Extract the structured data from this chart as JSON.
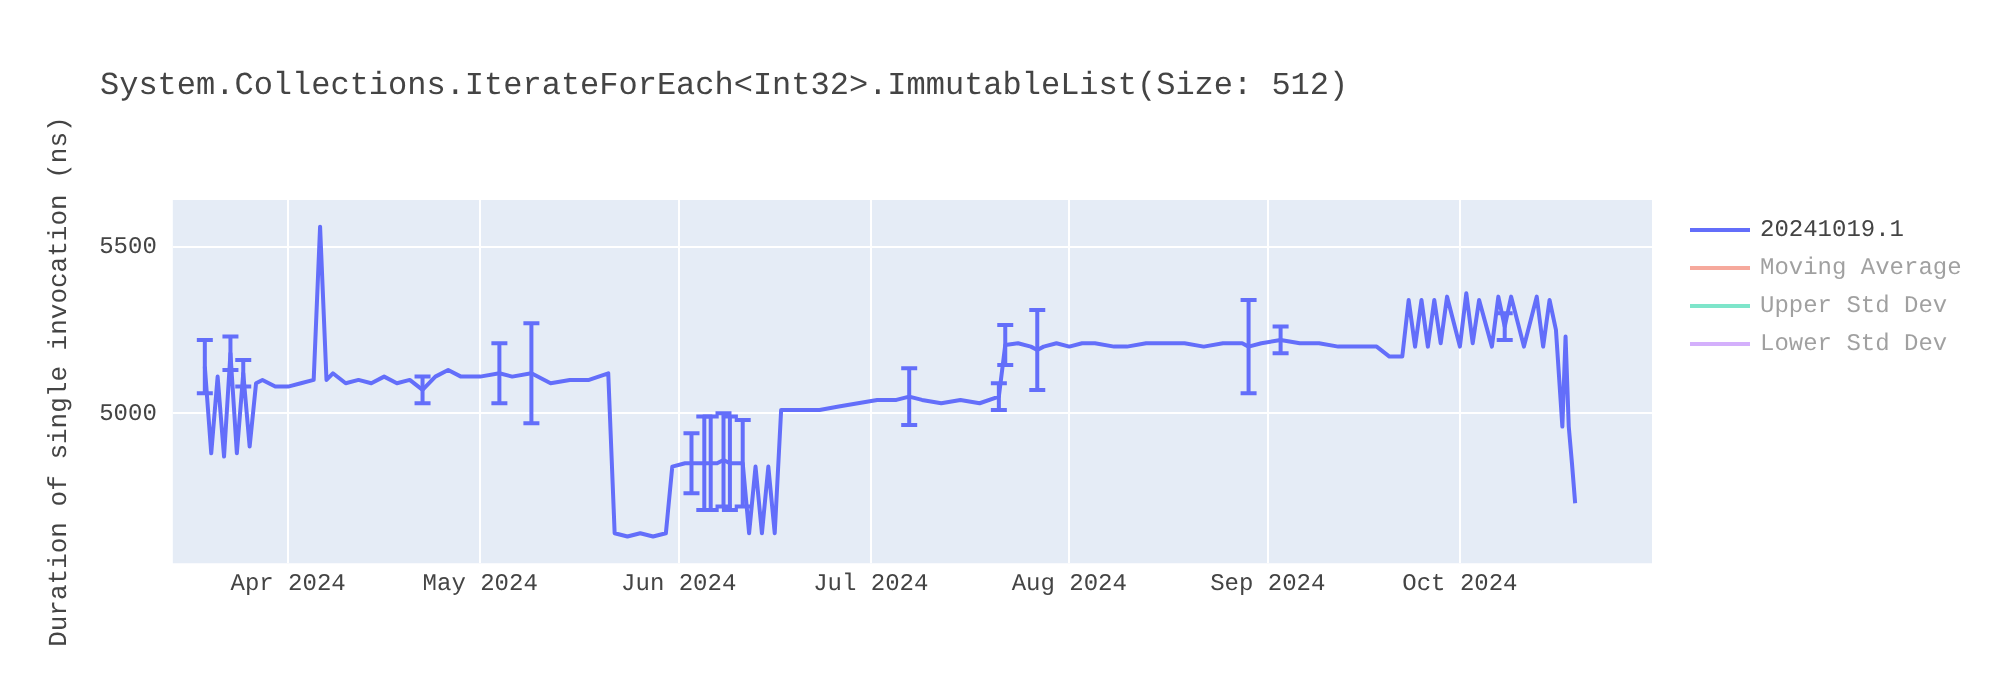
{
  "chart_data": {
    "type": "line",
    "title": "System.Collections.IterateForEach<Int32>.ImmutableList(Size: 512)",
    "ylabel": "Duration of single invocation (ns)",
    "x": [
      "2024-03-19",
      "2024-03-20",
      "2024-03-21",
      "2024-03-22",
      "2024-03-23",
      "2024-03-24",
      "2024-03-25",
      "2024-03-26",
      "2024-03-27",
      "2024-03-28",
      "2024-03-30",
      "2024-04-01",
      "2024-04-03",
      "2024-04-05",
      "2024-04-06",
      "2024-04-07",
      "2024-04-08",
      "2024-04-10",
      "2024-04-12",
      "2024-04-14",
      "2024-04-16",
      "2024-04-18",
      "2024-04-20",
      "2024-04-22",
      "2024-04-24",
      "2024-04-26",
      "2024-04-28",
      "2024-05-01",
      "2024-05-04",
      "2024-05-06",
      "2024-05-09",
      "2024-05-12",
      "2024-05-15",
      "2024-05-18",
      "2024-05-21",
      "2024-05-22",
      "2024-05-24",
      "2024-05-26",
      "2024-05-28",
      "2024-05-30",
      "2024-05-31",
      "2024-06-02",
      "2024-06-03",
      "2024-06-04",
      "2024-06-05",
      "2024-06-06",
      "2024-06-07",
      "2024-06-08",
      "2024-06-09",
      "2024-06-10",
      "2024-06-11",
      "2024-06-12",
      "2024-06-13",
      "2024-06-14",
      "2024-06-15",
      "2024-06-16",
      "2024-06-17",
      "2024-06-20",
      "2024-06-23",
      "2024-06-26",
      "2024-06-29",
      "2024-07-02",
      "2024-07-05",
      "2024-07-07",
      "2024-07-09",
      "2024-07-12",
      "2024-07-15",
      "2024-07-18",
      "2024-07-21",
      "2024-07-22",
      "2024-07-24",
      "2024-07-26",
      "2024-07-27",
      "2024-07-28",
      "2024-07-30",
      "2024-08-01",
      "2024-08-03",
      "2024-08-05",
      "2024-08-08",
      "2024-08-10",
      "2024-08-13",
      "2024-08-16",
      "2024-08-19",
      "2024-08-22",
      "2024-08-25",
      "2024-08-28",
      "2024-08-29",
      "2024-08-31",
      "2024-09-03",
      "2024-09-06",
      "2024-09-09",
      "2024-09-12",
      "2024-09-15",
      "2024-09-18",
      "2024-09-20",
      "2024-09-22",
      "2024-09-23",
      "2024-09-24",
      "2024-09-25",
      "2024-09-26",
      "2024-09-27",
      "2024-09-28",
      "2024-09-29",
      "2024-10-01",
      "2024-10-02",
      "2024-10-03",
      "2024-10-04",
      "2024-10-06",
      "2024-10-07",
      "2024-10-08",
      "2024-10-09",
      "2024-10-11",
      "2024-10-13",
      "2024-10-14",
      "2024-10-15",
      "2024-10-16",
      "2024-10-17",
      "2024-10-17T12:00",
      "2024-10-18",
      "2024-10-18T12:00",
      "2024-10-19"
    ],
    "series": [
      {
        "name": "20241019.1",
        "color": "#636efa",
        "values": [
          5140,
          4880,
          5110,
          4870,
          5180,
          4880,
          5120,
          4900,
          5090,
          5100,
          5080,
          5080,
          5090,
          5100,
          5560,
          5100,
          5120,
          5090,
          5100,
          5090,
          5110,
          5090,
          5100,
          5070,
          5110,
          5130,
          5110,
          5110,
          5120,
          5110,
          5120,
          5090,
          5100,
          5100,
          5120,
          4640,
          4630,
          4640,
          4630,
          4640,
          4840,
          4850,
          4850,
          4850,
          4850,
          4850,
          4850,
          4860,
          4850,
          4850,
          4850,
          4640,
          4840,
          4640,
          4840,
          4640,
          5010,
          5010,
          5010,
          5020,
          5030,
          5040,
          5040,
          5050,
          5040,
          5030,
          5040,
          5030,
          5050,
          5205,
          5210,
          5200,
          5190,
          5200,
          5210,
          5200,
          5210,
          5210,
          5200,
          5200,
          5210,
          5210,
          5210,
          5200,
          5210,
          5210,
          5200,
          5210,
          5220,
          5210,
          5210,
          5200,
          5200,
          5200,
          5170,
          5170,
          5340,
          5200,
          5340,
          5200,
          5340,
          5210,
          5350,
          5200,
          5360,
          5210,
          5340,
          5200,
          5350,
          5260,
          5350,
          5200,
          5350,
          5200,
          5340,
          5250,
          4960,
          5230,
          4960,
          4850,
          4730
        ],
        "errors": [
          80,
          null,
          null,
          null,
          50,
          null,
          40,
          null,
          null,
          null,
          null,
          null,
          null,
          null,
          null,
          null,
          null,
          null,
          null,
          null,
          null,
          null,
          null,
          40,
          null,
          null,
          null,
          null,
          90,
          null,
          150,
          null,
          null,
          null,
          null,
          null,
          null,
          null,
          null,
          null,
          null,
          null,
          90,
          null,
          140,
          140,
          null,
          140,
          140,
          null,
          130,
          null,
          null,
          null,
          null,
          null,
          null,
          null,
          null,
          null,
          null,
          null,
          null,
          85,
          null,
          null,
          null,
          null,
          40,
          60,
          null,
          null,
          120,
          null,
          null,
          null,
          null,
          null,
          null,
          null,
          null,
          null,
          null,
          null,
          null,
          null,
          140,
          null,
          40,
          null,
          null,
          null,
          null,
          null,
          null,
          null,
          null,
          null,
          null,
          null,
          null,
          null,
          null,
          null,
          null,
          null,
          null,
          null,
          null,
          40,
          null,
          null,
          null,
          null,
          null,
          null,
          null,
          null,
          null,
          null,
          null
        ]
      },
      {
        "name": "Moving Average",
        "color": "#ef553b",
        "values": [
          null,
          null,
          null,
          null,
          null,
          null,
          null,
          null,
          null,
          null,
          null,
          null,
          null,
          null,
          null,
          null,
          null,
          null,
          null,
          null,
          null,
          null,
          null,
          null,
          null,
          null,
          null,
          null,
          null,
          null,
          null,
          null,
          null,
          null,
          null,
          null,
          null,
          null,
          null,
          null,
          null,
          null,
          null,
          null,
          null,
          null,
          null,
          null,
          null,
          null,
          null,
          null,
          null,
          null,
          null,
          null,
          null,
          null,
          null,
          null,
          null,
          null,
          null,
          null,
          null,
          null,
          null,
          null,
          null,
          null,
          null,
          null,
          null,
          null,
          null,
          null,
          null,
          null,
          null,
          null,
          null,
          null,
          null,
          null,
          null,
          null,
          null,
          null,
          null,
          null,
          null,
          null,
          null,
          null,
          null,
          null,
          null,
          null,
          null,
          null,
          null,
          null,
          null,
          null,
          null,
          null,
          null,
          null,
          null,
          null,
          null,
          null,
          null,
          null,
          null,
          null,
          null,
          null,
          null,
          null,
          null
        ]
      },
      {
        "name": "Upper Std Dev",
        "color": "#00cc96",
        "values": [
          null,
          null,
          null,
          null,
          null,
          null,
          null,
          null,
          null,
          null,
          null,
          null,
          null,
          null,
          null,
          null,
          null,
          null,
          null,
          null,
          null,
          null,
          null,
          null,
          null,
          null,
          null,
          null,
          null,
          null,
          null,
          null,
          null,
          null,
          null,
          null,
          null,
          null,
          null,
          null,
          null,
          null,
          null,
          null,
          null,
          null,
          null,
          null,
          null,
          null,
          null,
          null,
          null,
          null,
          null,
          null,
          null,
          null,
          null,
          null,
          null,
          null,
          null,
          null,
          null,
          null,
          null,
          null,
          null,
          null,
          null,
          null,
          null,
          null,
          null,
          null,
          null,
          null,
          null,
          null,
          null,
          null,
          null,
          null,
          null,
          null,
          null,
          null,
          null,
          null,
          null,
          null,
          null,
          null,
          null,
          null,
          null,
          null,
          null,
          null,
          null,
          null,
          null,
          null,
          null,
          null,
          null,
          null,
          null,
          null,
          null,
          null,
          null,
          null,
          null,
          null,
          null,
          null,
          null,
          null,
          null
        ]
      },
      {
        "name": "Lower Std Dev",
        "color": "#ab63fa",
        "values": [
          null,
          null,
          null,
          null,
          null,
          null,
          null,
          null,
          null,
          null,
          null,
          null,
          null,
          null,
          null,
          null,
          null,
          null,
          null,
          null,
          null,
          null,
          null,
          null,
          null,
          null,
          null,
          null,
          null,
          null,
          null,
          null,
          null,
          null,
          null,
          null,
          null,
          null,
          null,
          null,
          null,
          null,
          null,
          null,
          null,
          null,
          null,
          null,
          null,
          null,
          null,
          null,
          null,
          null,
          null,
          null,
          null,
          null,
          null,
          null,
          null,
          null,
          null,
          null,
          null,
          null,
          null,
          null,
          null,
          null,
          null,
          null,
          null,
          null,
          null,
          null,
          null,
          null,
          null,
          null,
          null,
          null,
          null,
          null,
          null,
          null,
          null,
          null,
          null,
          null,
          null,
          null,
          null,
          null,
          null,
          null,
          null,
          null,
          null,
          null,
          null,
          null,
          null,
          null,
          null,
          null,
          null,
          null,
          null,
          null,
          null,
          null,
          null,
          null,
          null,
          null,
          null,
          null,
          null,
          null,
          null
        ]
      }
    ],
    "xlim": [
      "2024-03-14",
      "2024-10-31"
    ],
    "xticks": [
      {
        "value": "2024-04-01",
        "label": "Apr 2024"
      },
      {
        "value": "2024-05-01",
        "label": "May 2024"
      },
      {
        "value": "2024-06-01",
        "label": "Jun 2024"
      },
      {
        "value": "2024-07-01",
        "label": "Jul 2024"
      },
      {
        "value": "2024-08-01",
        "label": "Aug 2024"
      },
      {
        "value": "2024-09-01",
        "label": "Sep 2024"
      },
      {
        "value": "2024-10-01",
        "label": "Oct 2024"
      }
    ],
    "ylim": [
      4550,
      5640
    ],
    "yticks": [
      5000,
      5500
    ],
    "grid": true,
    "legend": "top right",
    "marker": "none",
    "line_style": "solid"
  }
}
